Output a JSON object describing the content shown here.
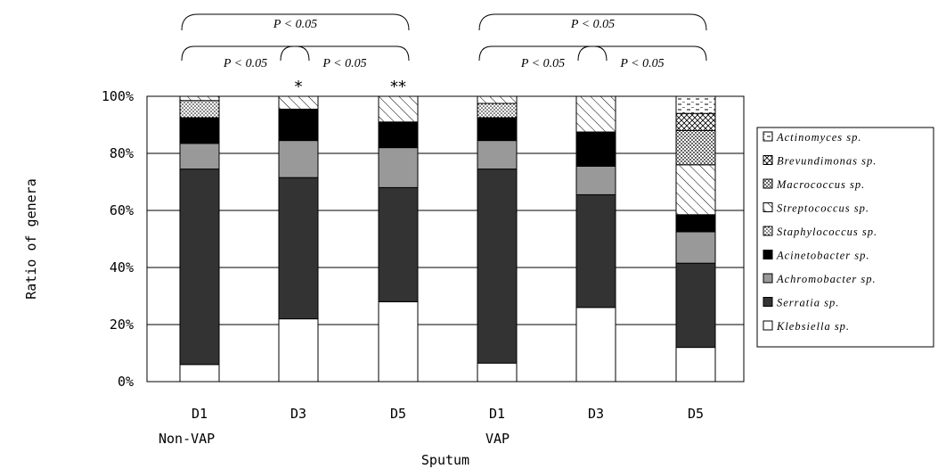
{
  "chart_data": {
    "type": "stacked-bar-100",
    "ylabel": "Ratio of genera",
    "xlabel": "Sputum",
    "y_ticks": [
      "0%",
      "20%",
      "40%",
      "60%",
      "80%",
      "100%"
    ],
    "ylim": [
      0,
      100
    ],
    "grid": true,
    "legend_position": "right",
    "categories": [
      "D1",
      "D3",
      "D5",
      "D1",
      "D3",
      "D5"
    ],
    "group_labels": [
      {
        "label": "Non-VAP",
        "under_category": 0
      },
      {
        "label": "VAP",
        "under_category": 3
      }
    ],
    "series": [
      {
        "name": "Klebsiella sp.",
        "fill": "white",
        "values": [
          6,
          22,
          28,
          6.5,
          26,
          12
        ]
      },
      {
        "name": "Serratia sp.",
        "fill": "#333333",
        "values": [
          68.5,
          49.5,
          40,
          68,
          39.5,
          29.5
        ]
      },
      {
        "name": "Achromobacter sp.",
        "fill": "#999999",
        "values": [
          9,
          13,
          14,
          10,
          10,
          11
        ]
      },
      {
        "name": "Acinetobacter sp.",
        "fill": "black",
        "values": [
          9,
          11,
          9,
          8,
          12,
          6
        ]
      },
      {
        "name": "Staphylococcus sp.",
        "fill": "dots",
        "values": [
          6,
          0,
          0,
          5,
          0,
          0
        ]
      },
      {
        "name": "Streptococcus sp.",
        "fill": "diag",
        "values": [
          1.5,
          4.5,
          9,
          2.5,
          12.5,
          17.5
        ]
      },
      {
        "name": "Macrococcus sp.",
        "fill": "check",
        "values": [
          0,
          0,
          0,
          0,
          0,
          12
        ]
      },
      {
        "name": "Brevundimonas sp.",
        "fill": "cross",
        "values": [
          0,
          0,
          0,
          0,
          0,
          6
        ]
      },
      {
        "name": "Actinomyces sp.",
        "fill": "dash",
        "values": [
          0,
          0,
          0,
          0,
          0,
          6
        ]
      }
    ],
    "annotations": {
      "significance": [
        {
          "text": "P < 0.05",
          "from": 0,
          "to": 2,
          "level": 2
        },
        {
          "text": "P < 0.05",
          "from": 0,
          "to": 1,
          "level": 1
        },
        {
          "text": "P < 0.05",
          "from": 1,
          "to": 2,
          "level": 1
        },
        {
          "text": "P < 0.05",
          "from": 3,
          "to": 5,
          "level": 2
        },
        {
          "text": "P < 0.05",
          "from": 3,
          "to": 4,
          "level": 1
        },
        {
          "text": "P < 0.05",
          "from": 4,
          "to": 5,
          "level": 1
        }
      ],
      "stars": [
        {
          "text": "*",
          "category": 1
        },
        {
          "text": "**",
          "category": 2
        }
      ]
    }
  }
}
